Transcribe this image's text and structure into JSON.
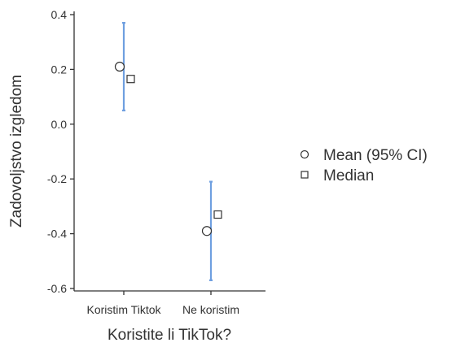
{
  "chart_data": {
    "type": "scatter",
    "xlabel": "Koristite li TikTok?",
    "ylabel": "Zadovoljstvo izgledom",
    "categories": [
      "Koristim Tiktok",
      "Ne koristim"
    ],
    "yticks": [
      0.4,
      0.2,
      0.0,
      -0.2,
      -0.4,
      -0.6
    ],
    "ytick_labels": [
      "0.4",
      "0.2",
      "0.0",
      "-0.2",
      "-0.4",
      "-0.6"
    ],
    "ylim": [
      -0.62,
      0.41
    ],
    "grid": false,
    "legend_position": "right",
    "series": [
      {
        "name": "Mean (95% CI)",
        "marker": "circle",
        "values": [
          0.21,
          -0.39
        ],
        "ci_low": [
          0.05,
          -0.57
        ],
        "ci_high": [
          0.37,
          -0.21
        ]
      },
      {
        "name": "Median",
        "marker": "square",
        "values": [
          0.165,
          -0.33
        ]
      }
    ],
    "colors": {
      "errorbar": "#6f9fe0",
      "marker_stroke": "#333333",
      "axis": "#333333"
    }
  }
}
